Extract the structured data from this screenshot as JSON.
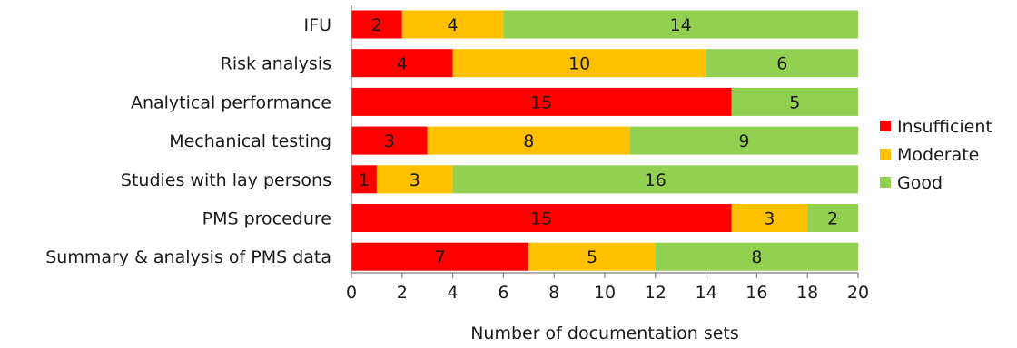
{
  "chart_data": {
    "type": "bar",
    "orientation": "horizontal",
    "stacked": true,
    "title": "",
    "xlabel": "Number of documentation sets",
    "ylabel": "",
    "xlim": [
      0,
      20
    ],
    "x_ticks": [
      0,
      2,
      4,
      6,
      8,
      10,
      12,
      14,
      16,
      18,
      20
    ],
    "grid": false,
    "legend_position": "right",
    "categories": [
      "IFU",
      "Risk analysis",
      "Analytical performance",
      "Mechanical testing",
      "Studies with lay persons",
      "PMS procedure",
      "Summary & analysis of PMS data"
    ],
    "series": [
      {
        "name": "Insufficient",
        "color": "#ff0000",
        "values": [
          2,
          4,
          15,
          3,
          1,
          15,
          7
        ]
      },
      {
        "name": "Moderate",
        "color": "#ffc000",
        "values": [
          4,
          10,
          0,
          8,
          3,
          3,
          5
        ]
      },
      {
        "name": "Good",
        "color": "#92d050",
        "values": [
          14,
          6,
          5,
          9,
          16,
          2,
          8
        ]
      }
    ]
  }
}
